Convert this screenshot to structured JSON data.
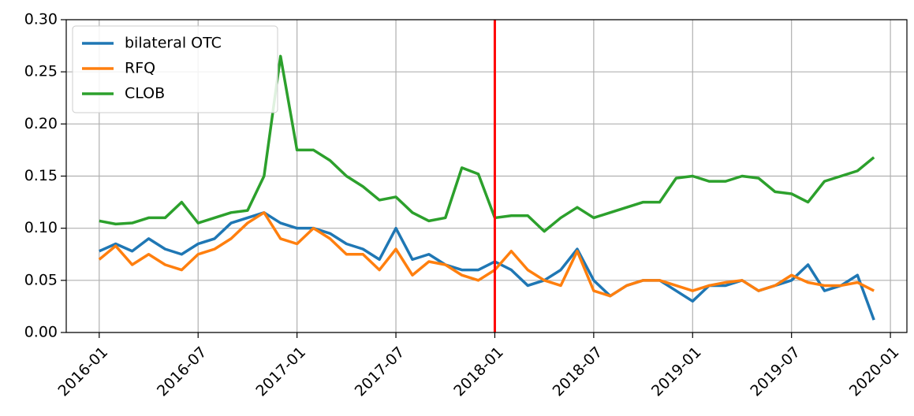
{
  "chart_data": {
    "type": "line",
    "x": [
      "2016-01",
      "2016-02",
      "2016-03",
      "2016-04",
      "2016-05",
      "2016-06",
      "2016-07",
      "2016-08",
      "2016-09",
      "2016-10",
      "2016-11",
      "2016-12",
      "2017-01",
      "2017-02",
      "2017-03",
      "2017-04",
      "2017-05",
      "2017-06",
      "2017-07",
      "2017-08",
      "2017-09",
      "2017-10",
      "2017-11",
      "2017-12",
      "2018-01",
      "2018-02",
      "2018-03",
      "2018-04",
      "2018-05",
      "2018-06",
      "2018-07",
      "2018-08",
      "2018-09",
      "2018-10",
      "2018-11",
      "2018-12",
      "2019-01",
      "2019-02",
      "2019-03",
      "2019-04",
      "2019-05",
      "2019-06",
      "2019-07",
      "2019-08",
      "2019-09",
      "2019-10",
      "2019-11",
      "2019-12"
    ],
    "series": [
      {
        "name": "bilateral OTC",
        "color": "#1f77b4",
        "values": [
          0.078,
          0.085,
          0.078,
          0.09,
          0.08,
          0.075,
          0.085,
          0.09,
          0.105,
          0.11,
          0.115,
          0.105,
          0.1,
          0.1,
          0.095,
          0.085,
          0.08,
          0.07,
          0.1,
          0.07,
          0.075,
          0.065,
          0.06,
          0.06,
          0.068,
          0.06,
          0.045,
          0.05,
          0.06,
          0.08,
          0.05,
          0.035,
          0.045,
          0.05,
          0.05,
          0.04,
          0.03,
          0.045,
          0.045,
          0.05,
          0.04,
          0.045,
          0.05,
          0.065,
          0.04,
          0.045,
          0.055,
          0.012
        ]
      },
      {
        "name": "RFQ",
        "color": "#ff7f0e",
        "values": [
          0.07,
          0.083,
          0.065,
          0.075,
          0.065,
          0.06,
          0.075,
          0.08,
          0.09,
          0.105,
          0.115,
          0.09,
          0.085,
          0.1,
          0.09,
          0.075,
          0.075,
          0.06,
          0.08,
          0.055,
          0.068,
          0.065,
          0.055,
          0.05,
          0.06,
          0.078,
          0.06,
          0.05,
          0.045,
          0.078,
          0.04,
          0.035,
          0.045,
          0.05,
          0.05,
          0.045,
          0.04,
          0.045,
          0.048,
          0.05,
          0.04,
          0.045,
          0.055,
          0.048,
          0.045,
          0.045,
          0.048,
          0.04
        ]
      },
      {
        "name": "CLOB",
        "color": "#2ca02c",
        "values": [
          0.107,
          0.104,
          0.105,
          0.11,
          0.11,
          0.125,
          0.105,
          0.11,
          0.115,
          0.117,
          0.15,
          0.265,
          0.175,
          0.175,
          0.165,
          0.15,
          0.14,
          0.127,
          0.13,
          0.115,
          0.107,
          0.11,
          0.158,
          0.152,
          0.11,
          0.112,
          0.112,
          0.097,
          0.11,
          0.12,
          0.11,
          0.115,
          0.12,
          0.125,
          0.125,
          0.148,
          0.15,
          0.145,
          0.145,
          0.15,
          0.148,
          0.135,
          0.133,
          0.125,
          0.145,
          0.15,
          0.155,
          0.168
        ]
      }
    ],
    "xlim": [
      "2015-11",
      "2020-02"
    ],
    "xticks": [
      "2016-01",
      "2016-07",
      "2017-01",
      "2017-07",
      "2018-01",
      "2018-07",
      "2019-01",
      "2019-07",
      "2020-01"
    ],
    "ylim": [
      0,
      0.3
    ],
    "yticks": [
      {
        "value": 0,
        "label": "0.00"
      },
      0.05,
      {
        "value": 0.1,
        "label": "0.10"
      },
      0.15,
      {
        "value": 0.2,
        "label": "0.20"
      },
      0.25,
      {
        "value": 0.3,
        "label": "0.30"
      }
    ],
    "grid": true,
    "legend": "upper left",
    "vline": {
      "x": "2018-01",
      "color": "#ff0000"
    }
  }
}
